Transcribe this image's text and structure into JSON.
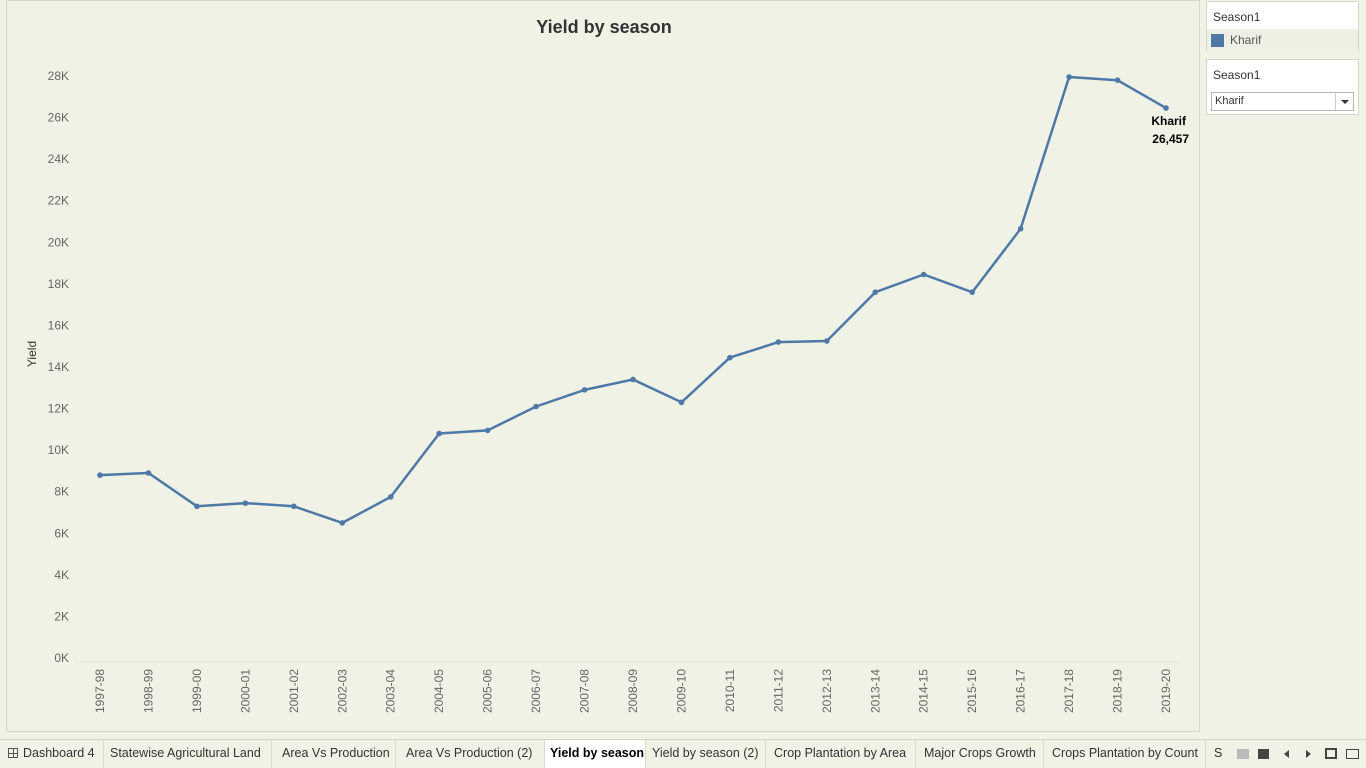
{
  "chart_data": {
    "type": "line",
    "title": "Yield by season",
    "xlabel": "",
    "ylabel": "Yield",
    "ylim": [
      0,
      28000
    ],
    "yticks": [
      0,
      2000,
      4000,
      6000,
      8000,
      10000,
      12000,
      14000,
      16000,
      18000,
      20000,
      22000,
      24000,
      26000,
      28000
    ],
    "ytick_labels": [
      "0K",
      "2K",
      "4K",
      "6K",
      "8K",
      "10K",
      "12K",
      "14K",
      "16K",
      "18K",
      "20K",
      "22K",
      "24K",
      "26K",
      "28K"
    ],
    "x": [
      "1997-98",
      "1998-99",
      "1999-00",
      "2000-01",
      "2001-02",
      "2002-03",
      "2003-04",
      "2004-05",
      "2005-06",
      "2006-07",
      "2007-08",
      "2008-09",
      "2009-10",
      "2010-11",
      "2011-12",
      "2012-13",
      "2013-14",
      "2014-15",
      "2015-16",
      "2016-17",
      "2017-18",
      "2018-19",
      "2019-20"
    ],
    "series": [
      {
        "name": "Kharif",
        "color": "#4e79a7",
        "values": [
          8800,
          8900,
          7300,
          7450,
          7300,
          6500,
          7750,
          10800,
          10950,
          12100,
          12900,
          13400,
          12300,
          14450,
          15200,
          15250,
          17600,
          18450,
          17600,
          20650,
          27950,
          27800,
          26457
        ]
      }
    ],
    "annotation": {
      "series": "Kharif",
      "label": "Kharif",
      "value_text": "26,457"
    },
    "grid": false
  },
  "legend": {
    "title": "Season1",
    "items": [
      {
        "label": "Kharif",
        "color": "#4e79a7"
      }
    ]
  },
  "filter": {
    "title": "Season1",
    "selected": "Kharif"
  },
  "tabs": [
    {
      "label": "Dashboard 4",
      "icon": "dashboard-icon"
    },
    {
      "label": "Statewise Agricultural Land"
    },
    {
      "label": "Area Vs Production"
    },
    {
      "label": "Area Vs Production (2)"
    },
    {
      "label": "Yield by season",
      "active": true
    },
    {
      "label": "Yield by season (2)"
    },
    {
      "label": "Crop Plantation by Area"
    },
    {
      "label": "Major Crops Growth"
    },
    {
      "label": "Crops Plantation by Count"
    },
    {
      "label": "S"
    }
  ]
}
